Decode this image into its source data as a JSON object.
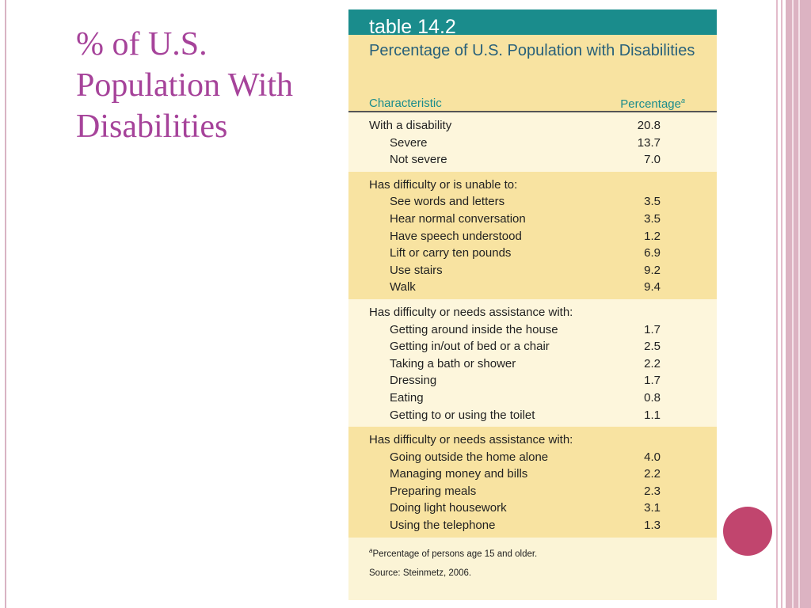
{
  "slide": {
    "title": "% of U.S. Population With Disabilities"
  },
  "colors": {
    "accent": "#a6439a",
    "teal": "#1a8c8c",
    "band_dark": "#f8e3a1",
    "band_light": "#fdf6dc",
    "dot": "#c1456e"
  },
  "table": {
    "label": "table 14.2",
    "title": "Percentage of U.S. Population with Disabilities",
    "col_characteristic": "Characteristic",
    "col_percentage": "Percentage",
    "col_percentage_note": "a",
    "groups": [
      {
        "heading": "With a disability",
        "heading_value": "20.8",
        "rows": [
          {
            "label": "Severe",
            "value": "13.7"
          },
          {
            "label": "Not severe",
            "value": "7.0"
          }
        ]
      },
      {
        "heading": "Has difficulty or is unable to:",
        "heading_value": "",
        "rows": [
          {
            "label": "See words and letters",
            "value": "3.5"
          },
          {
            "label": "Hear normal conversation",
            "value": "3.5"
          },
          {
            "label": "Have speech understood",
            "value": "1.2"
          },
          {
            "label": "Lift or carry ten pounds",
            "value": "6.9"
          },
          {
            "label": "Use stairs",
            "value": "9.2"
          },
          {
            "label": "Walk",
            "value": "9.4"
          }
        ]
      },
      {
        "heading": "Has difficulty or needs assistance with:",
        "heading_value": "",
        "rows": [
          {
            "label": "Getting around inside the house",
            "value": "1.7"
          },
          {
            "label": "Getting in/out of bed or a chair",
            "value": "2.5"
          },
          {
            "label": "Taking a bath or shower",
            "value": "2.2"
          },
          {
            "label": "Dressing",
            "value": "1.7"
          },
          {
            "label": "Eating",
            "value": "0.8"
          },
          {
            "label": "Getting to or using the toilet",
            "value": "1.1"
          }
        ]
      },
      {
        "heading": "Has difficulty or needs assistance with:",
        "heading_value": "",
        "rows": [
          {
            "label": "Going outside the home alone",
            "value": "4.0"
          },
          {
            "label": "Managing money and bills",
            "value": "2.2"
          },
          {
            "label": "Preparing meals",
            "value": "2.3"
          },
          {
            "label": "Doing light housework",
            "value": "3.1"
          },
          {
            "label": "Using the telephone",
            "value": "1.3"
          }
        ]
      }
    ],
    "footnote_marker": "a",
    "footnote": "Percentage of persons age 15 and older.",
    "source": "Source: Steinmetz, 2006."
  }
}
